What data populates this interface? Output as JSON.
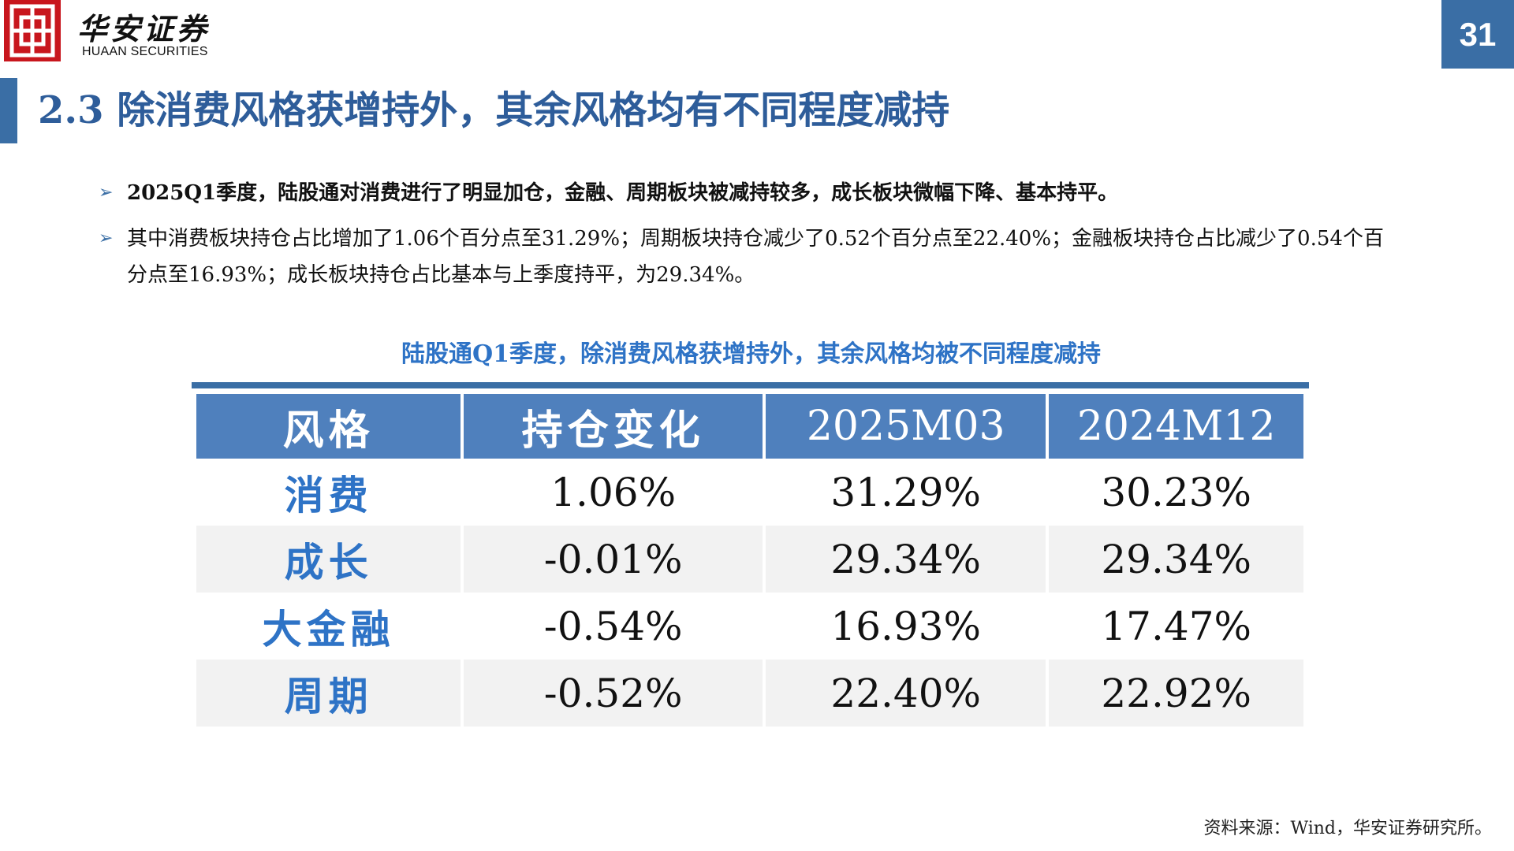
{
  "header": {
    "logo_cn": "华安证券",
    "logo_en": "HUAAN SECURITIES",
    "page_number": "31",
    "logo_color": "#c8161d",
    "accent_color": "#3a6ea5"
  },
  "title": "2.3 除消费风格获增持外，其余风格均有不同程度减持",
  "bullets": [
    {
      "marker": "➢",
      "text": "2025Q1季度，陆股通对消费进行了明显加仓，金融、周期板块被减持较多，成长板块微幅下降、基本持平。"
    },
    {
      "marker": "➢",
      "text": "其中消费板块持仓占比增加了1.06个百分点至31.29%；周期板块持仓减少了0.52个百分点至22.40%；金融板块持仓占比减少了0.54个百分点至16.93%；成长板块持仓占比基本与上季度持平，为29.34%。"
    }
  ],
  "table": {
    "caption": "陆股通Q1季度，除消费风格获增持外，其余风格均被不同程度减持",
    "headers": [
      "风格",
      "持仓变化",
      "2025M03",
      "2024M12"
    ],
    "rows": [
      {
        "style": "消费",
        "change": "1.06%",
        "m2503": "31.29%",
        "m2412": "30.23%"
      },
      {
        "style": "成长",
        "change": "-0.01%",
        "m2503": "29.34%",
        "m2412": "29.34%"
      },
      {
        "style": "大金融",
        "change": "-0.54%",
        "m2503": "16.93%",
        "m2412": "17.47%"
      },
      {
        "style": "周期",
        "change": "-0.52%",
        "m2503": "22.40%",
        "m2412": "22.92%"
      }
    ],
    "header_color": "#4f80bd",
    "style_name_color": "#2e73c6"
  },
  "source": "资料来源：Wind，华安证券研究所。"
}
